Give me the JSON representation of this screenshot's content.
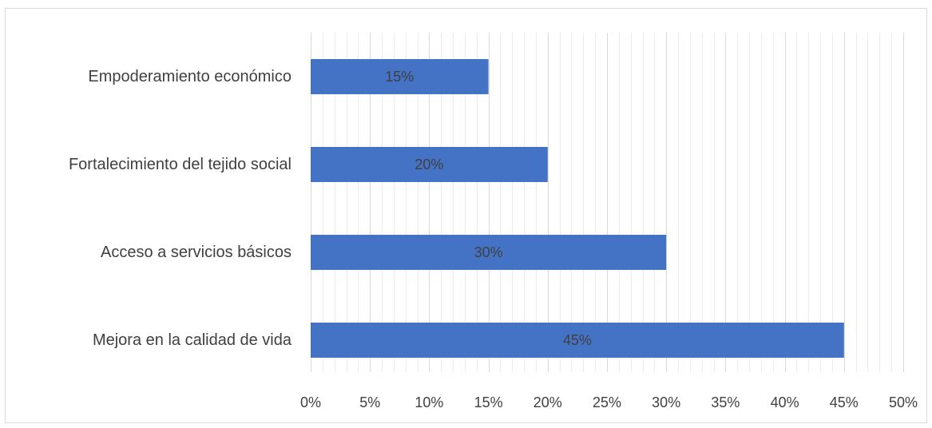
{
  "chart_data": {
    "type": "bar",
    "orientation": "horizontal",
    "categories": [
      "Empoderamiento económico",
      "Fortalecimiento del tejido social",
      "Acceso a servicios básicos",
      "Mejora en la calidad de vida"
    ],
    "values": [
      15,
      20,
      30,
      45
    ],
    "value_labels": [
      "15%",
      "20%",
      "30%",
      "45%"
    ],
    "xlim": [
      0,
      50
    ],
    "x_ticks": [
      0,
      5,
      10,
      15,
      20,
      25,
      30,
      35,
      40,
      45,
      50
    ],
    "x_tick_labels": [
      "0%",
      "5%",
      "10%",
      "15%",
      "20%",
      "25%",
      "30%",
      "35%",
      "40%",
      "45%",
      "50%"
    ],
    "title": "",
    "xlabel": "",
    "ylabel": "",
    "grid": "vertical major and minor gridlines",
    "legend": "none",
    "bar_color": "#4472c4",
    "grid_color_major": "#d9d9d9",
    "grid_color_minor": "#ececec",
    "text_color": "#404040"
  }
}
